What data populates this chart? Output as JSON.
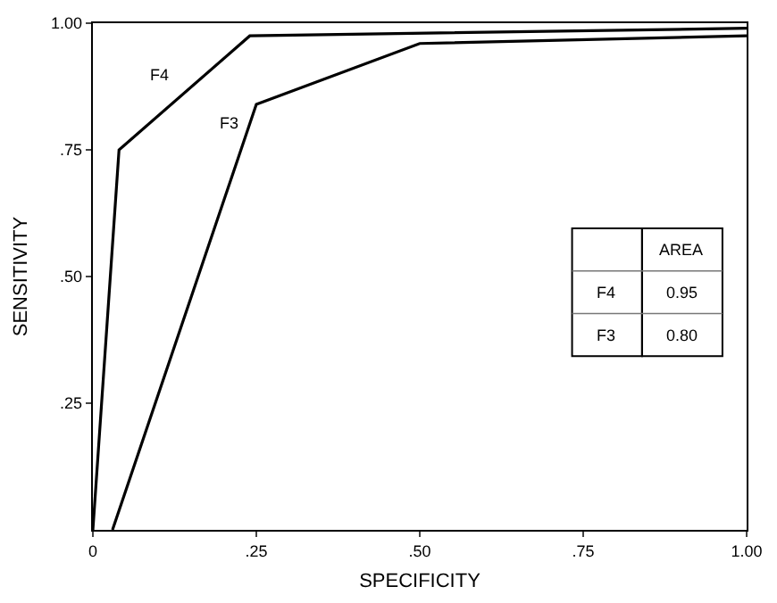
{
  "chart_data": {
    "type": "line",
    "xlabel": "SPECIFICITY",
    "ylabel": "SENSITIVITY",
    "series": [
      {
        "name": "F4",
        "color": "#000000",
        "x": [
          0,
          0.04,
          0.24,
          1.0
        ],
        "values": [
          0,
          0.75,
          0.975,
          0.99
        ]
      },
      {
        "name": "F3",
        "color": "#000000",
        "x": [
          0.03,
          0.25,
          0.5,
          1.0
        ],
        "values": [
          0,
          0.84,
          0.96,
          0.975
        ]
      }
    ],
    "xlim": [
      0,
      1
    ],
    "ylim": [
      0,
      1
    ],
    "xticks": [
      0,
      {
        "value": 0.25,
        "label": ".25"
      },
      {
        "value": 0.5,
        "label": ".50"
      },
      {
        "value": 0.75,
        "label": ".75"
      },
      {
        "value": 1,
        "label": "1.00"
      }
    ],
    "yticks": [
      {
        "value": 0.25,
        "label": ".25"
      },
      {
        "value": 0.5,
        "label": ".50"
      },
      {
        "value": 0.75,
        "label": ".75"
      },
      {
        "value": 1,
        "label": "1.00"
      }
    ],
    "annotations": [
      "AREA",
      "F4",
      "0.95",
      "F3",
      "0.80"
    ],
    "grid": false,
    "legend": false,
    "marker": "none",
    "line_style": "solid"
  }
}
